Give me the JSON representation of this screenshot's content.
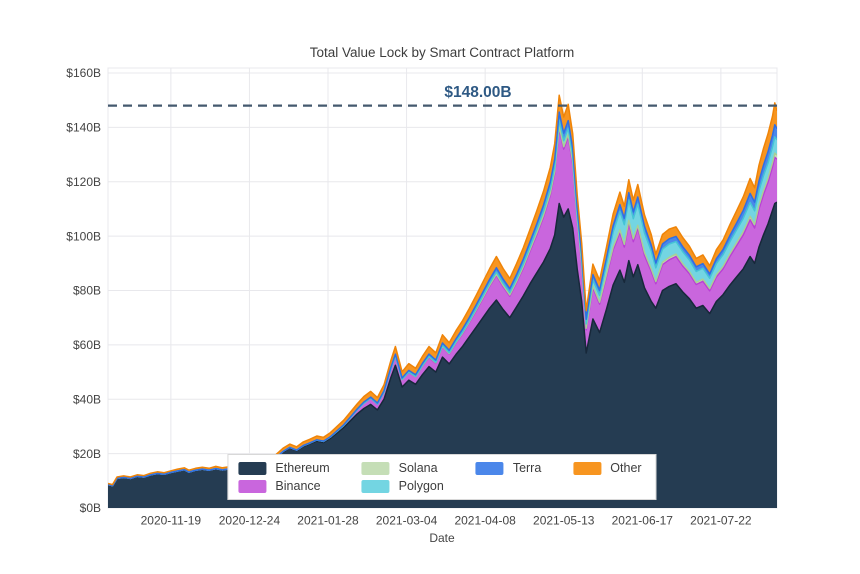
{
  "figure": {
    "title": "Total Value Lock by Smart Contract Platform",
    "x_axis_title": "Date",
    "annotation_label": "$148.00B"
  },
  "chart_data": {
    "type": "area",
    "stacked": true,
    "title": "Total Value Lock by Smart Contract Platform",
    "xlabel": "Date",
    "ylabel": "",
    "grid": true,
    "legend_position": "inside-bottom-center",
    "background": "#ffffff",
    "grid_color": "#e8e8ec",
    "tick_color": "#444444",
    "ylim": [
      0,
      160
    ],
    "y_tick_values": [
      0,
      20,
      40,
      60,
      80,
      100,
      120,
      140,
      160
    ],
    "y_tick_labels": [
      "$0B",
      "$20B",
      "$40B",
      "$60B",
      "$80B",
      "$100B",
      "$120B",
      "$140B",
      "$160B"
    ],
    "x_range": [
      "2020-10-22",
      "2021-08-16"
    ],
    "x_tick_labels": [
      "2020-11-19",
      "2020-12-24",
      "2021-01-28",
      "2021-03-04",
      "2021-04-08",
      "2021-05-13",
      "2021-06-17",
      "2021-07-22"
    ],
    "reference_line": {
      "value": 148,
      "label": "$148.00B",
      "style": "dashed",
      "color": "#44596e"
    },
    "series_meta": [
      {
        "name": "Ethereum",
        "fill": "#253c52",
        "line": "#17283a"
      },
      {
        "name": "Binance",
        "fill": "#c966dd",
        "line": "#b93fd4"
      },
      {
        "name": "Solana",
        "fill": "#c5deb6",
        "line": "#a9cf96"
      },
      {
        "name": "Polygon",
        "fill": "#73d5e2",
        "line": "#45c4d6"
      },
      {
        "name": "Terra",
        "fill": "#4b87ea",
        "line": "#2f6fe3"
      },
      {
        "name": "Other",
        "fill": "#f79520",
        "line": "#ef8408"
      }
    ],
    "points": [
      [
        "2020-10-22",
        8.6,
        0,
        0,
        0,
        0,
        0.4
      ],
      [
        "2020-10-24",
        8.2,
        0,
        0,
        0,
        0,
        0.4
      ],
      [
        "2020-10-26",
        10.9,
        0,
        0,
        0,
        0,
        0.5
      ],
      [
        "2020-10-29",
        11.3,
        0,
        0,
        0,
        0,
        0.5
      ],
      [
        "2020-11-01",
        10.9,
        0,
        0,
        0,
        0,
        0.5
      ],
      [
        "2020-11-04",
        11.7,
        0,
        0,
        0,
        0,
        0.5
      ],
      [
        "2020-11-07",
        11.4,
        0,
        0,
        0,
        0,
        0.5
      ],
      [
        "2020-11-10",
        12.2,
        0,
        0,
        0,
        0,
        0.6
      ],
      [
        "2020-11-13",
        12.7,
        0,
        0,
        0,
        0,
        0.6
      ],
      [
        "2020-11-16",
        12.4,
        0,
        0,
        0,
        0,
        0.6
      ],
      [
        "2020-11-19",
        13.1,
        0,
        0,
        0,
        0,
        0.6
      ],
      [
        "2020-11-22",
        13.6,
        0,
        0,
        0,
        0,
        0.7
      ],
      [
        "2020-11-25",
        14.1,
        0,
        0,
        0,
        0,
        0.7
      ],
      [
        "2020-11-27",
        13.2,
        0,
        0,
        0,
        0,
        0.7
      ],
      [
        "2020-11-30",
        13.9,
        0,
        0,
        0,
        0,
        0.7
      ],
      [
        "2020-12-03",
        14.3,
        0,
        0,
        0,
        0,
        0.7
      ],
      [
        "2020-12-06",
        13.9,
        0,
        0,
        0,
        0,
        0.7
      ],
      [
        "2020-12-09",
        14.5,
        0,
        0,
        0,
        0,
        0.8
      ],
      [
        "2020-12-12",
        14.0,
        0,
        0,
        0,
        0,
        0.8
      ],
      [
        "2020-12-15",
        14.4,
        0,
        0,
        0,
        0,
        0.8
      ],
      [
        "2020-12-18",
        14.9,
        0,
        0,
        0,
        0,
        0.8
      ],
      [
        "2020-12-21",
        14.6,
        0,
        0,
        0,
        0,
        0.8
      ],
      [
        "2020-12-24",
        15.3,
        0,
        0,
        0,
        0,
        0.9
      ],
      [
        "2020-12-27",
        15.9,
        0.1,
        0,
        0,
        0,
        0.9
      ],
      [
        "2020-12-30",
        16.3,
        0.1,
        0,
        0,
        0,
        1.0
      ],
      [
        "2021-01-02",
        17.1,
        0.1,
        0,
        0,
        0,
        1.0
      ],
      [
        "2021-01-05",
        18.6,
        0.1,
        0,
        0,
        0,
        1.1
      ],
      [
        "2021-01-08",
        20.6,
        0.2,
        0,
        0,
        0,
        1.2
      ],
      [
        "2021-01-11",
        22.1,
        0.2,
        0,
        0,
        0,
        1.2
      ],
      [
        "2021-01-14",
        21.1,
        0.2,
        0,
        0,
        0,
        1.2
      ],
      [
        "2021-01-17",
        22.6,
        0.3,
        0,
        0,
        0.1,
        1.3
      ],
      [
        "2021-01-20",
        23.6,
        0.3,
        0,
        0,
        0.1,
        1.3
      ],
      [
        "2021-01-23",
        24.6,
        0.4,
        0,
        0,
        0.1,
        1.4
      ],
      [
        "2021-01-26",
        24.1,
        0.4,
        0,
        0,
        0.1,
        1.4
      ],
      [
        "2021-01-29",
        25.6,
        0.5,
        0,
        0,
        0.1,
        1.5
      ],
      [
        "2021-02-01",
        27.6,
        0.6,
        0,
        0,
        0.2,
        1.6
      ],
      [
        "2021-02-04",
        29.6,
        0.8,
        0,
        0,
        0.2,
        1.7
      ],
      [
        "2021-02-07",
        32.1,
        1.1,
        0,
        0,
        0.3,
        1.8
      ],
      [
        "2021-02-10",
        34.6,
        1.5,
        0,
        0,
        0.3,
        1.9
      ],
      [
        "2021-02-13",
        36.6,
        1.9,
        0.1,
        0,
        0.4,
        2.0
      ],
      [
        "2021-02-16",
        38.1,
        2.2,
        0.1,
        0,
        0.4,
        2.1
      ],
      [
        "2021-02-19",
        36.1,
        2.0,
        0.1,
        0,
        0.4,
        2.0
      ],
      [
        "2021-02-22",
        40.1,
        2.4,
        0.1,
        0.1,
        0.5,
        2.2
      ],
      [
        "2021-02-25",
        48.0,
        2.9,
        0.1,
        0.1,
        0.6,
        2.6
      ],
      [
        "2021-02-27",
        52.5,
        3.2,
        0.2,
        0.1,
        0.6,
        2.8
      ],
      [
        "2021-03-02",
        44.5,
        2.6,
        0.1,
        0.1,
        0.5,
        2.3
      ],
      [
        "2021-03-05",
        47.0,
        2.8,
        0.1,
        0.1,
        0.6,
        2.5
      ],
      [
        "2021-03-08",
        45.5,
        2.7,
        0.1,
        0.1,
        0.6,
        2.4
      ],
      [
        "2021-03-11",
        49.0,
        3.0,
        0.2,
        0.2,
        0.7,
        2.6
      ],
      [
        "2021-03-14",
        52.0,
        3.4,
        0.2,
        0.2,
        0.8,
        2.8
      ],
      [
        "2021-03-17",
        50.0,
        3.2,
        0.2,
        0.2,
        0.8,
        2.7
      ],
      [
        "2021-03-20",
        55.5,
        3.8,
        0.2,
        0.3,
        0.9,
        3.0
      ],
      [
        "2021-03-23",
        53.0,
        3.6,
        0.2,
        0.3,
        0.9,
        2.8
      ],
      [
        "2021-03-26",
        56.5,
        4.1,
        0.3,
        0.3,
        1.0,
        3.0
      ],
      [
        "2021-03-29",
        59.5,
        4.6,
        0.3,
        0.4,
        1.1,
        3.1
      ],
      [
        "2021-04-01",
        63.0,
        5.2,
        0.3,
        0.4,
        1.2,
        3.3
      ],
      [
        "2021-04-04",
        66.5,
        6.0,
        0.4,
        0.5,
        1.3,
        3.5
      ],
      [
        "2021-04-07",
        70.0,
        7.0,
        0.4,
        0.6,
        1.4,
        3.7
      ],
      [
        "2021-04-10",
        73.5,
        8.0,
        0.4,
        0.7,
        1.5,
        3.9
      ],
      [
        "2021-04-13",
        76.5,
        9.0,
        0.5,
        0.8,
        1.6,
        4.1
      ],
      [
        "2021-04-16",
        73.0,
        8.4,
        0.5,
        0.8,
        1.5,
        3.9
      ],
      [
        "2021-04-19",
        70.0,
        7.9,
        0.5,
        0.8,
        1.5,
        3.7
      ],
      [
        "2021-04-22",
        74.0,
        8.9,
        0.5,
        0.9,
        1.6,
        4.0
      ],
      [
        "2021-04-25",
        78.0,
        10.2,
        0.6,
        1.0,
        1.7,
        4.2
      ],
      [
        "2021-04-28",
        82.5,
        12.0,
        0.6,
        1.1,
        1.8,
        4.5
      ],
      [
        "2021-05-01",
        86.5,
        14.0,
        0.7,
        1.3,
        2.0,
        4.8
      ],
      [
        "2021-05-04",
        90.5,
        16.5,
        0.7,
        1.5,
        2.2,
        5.1
      ],
      [
        "2021-05-07",
        95.5,
        19.5,
        0.8,
        1.7,
        2.4,
        5.4
      ],
      [
        "2021-05-09",
        100.5,
        22.5,
        0.8,
        1.9,
        2.6,
        5.7
      ],
      [
        "2021-05-11",
        112.0,
        27.5,
        0.9,
        2.3,
        2.9,
        6.2
      ],
      [
        "2021-05-13",
        107.0,
        25.0,
        0.9,
        2.2,
        2.8,
        5.9
      ],
      [
        "2021-05-15",
        110.0,
        26.5,
        0.9,
        2.3,
        2.8,
        6.0
      ],
      [
        "2021-05-17",
        103.0,
        23.5,
        0.9,
        2.2,
        2.6,
        5.5
      ],
      [
        "2021-05-19",
        88.0,
        17.5,
        0.8,
        2.0,
        2.3,
        4.6
      ],
      [
        "2021-05-21",
        76.0,
        13.0,
        0.7,
        1.8,
        2.0,
        3.9
      ],
      [
        "2021-05-23",
        57.0,
        8.5,
        0.6,
        1.6,
        1.7,
        3.2
      ],
      [
        "2021-05-26",
        69.5,
        11.5,
        0.7,
        2.2,
        2.0,
        3.8
      ],
      [
        "2021-05-29",
        64.5,
        10.5,
        0.7,
        2.5,
        1.9,
        3.6
      ],
      [
        "2021-06-01",
        73.0,
        12.0,
        0.8,
        3.8,
        2.2,
        4.0
      ],
      [
        "2021-06-04",
        82.0,
        13.0,
        0.9,
        5.5,
        2.4,
        4.3
      ],
      [
        "2021-06-07",
        87.5,
        13.8,
        1.0,
        6.8,
        2.5,
        4.6
      ],
      [
        "2021-06-09",
        83.0,
        13.0,
        1.0,
        7.2,
        2.4,
        4.4
      ],
      [
        "2021-06-11",
        91.0,
        13.8,
        1.0,
        7.6,
        2.6,
        4.7
      ],
      [
        "2021-06-13",
        85.0,
        13.0,
        1.0,
        7.4,
        2.5,
        4.4
      ],
      [
        "2021-06-15",
        89.5,
        13.5,
        1.0,
        7.8,
        2.6,
        4.6
      ],
      [
        "2021-06-18",
        81.0,
        12.0,
        1.0,
        7.2,
        2.4,
        4.2
      ],
      [
        "2021-06-21",
        76.0,
        11.0,
        0.9,
        6.5,
        2.2,
        3.9
      ],
      [
        "2021-06-23",
        73.5,
        9.0,
        0.8,
        5.0,
        1.8,
        3.3
      ],
      [
        "2021-06-26",
        80.0,
        9.5,
        0.9,
        4.8,
        1.9,
        3.5
      ],
      [
        "2021-06-29",
        81.5,
        9.8,
        0.9,
        4.9,
        1.9,
        3.6
      ],
      [
        "2021-07-02",
        82.5,
        10.0,
        0.9,
        4.6,
        1.9,
        3.5
      ],
      [
        "2021-07-05",
        79.5,
        9.5,
        0.9,
        4.4,
        1.8,
        3.4
      ],
      [
        "2021-07-08",
        77.0,
        9.2,
        0.8,
        4.2,
        1.8,
        3.3
      ],
      [
        "2021-07-11",
        73.5,
        8.7,
        0.8,
        4.0,
        1.7,
        3.1
      ],
      [
        "2021-07-14",
        74.5,
        8.9,
        0.8,
        4.0,
        1.7,
        3.2
      ],
      [
        "2021-07-17",
        71.5,
        8.4,
        0.8,
        3.8,
        1.6,
        3.0
      ],
      [
        "2021-07-20",
        76.0,
        9.0,
        0.8,
        4.1,
        1.8,
        3.3
      ],
      [
        "2021-07-23",
        78.5,
        9.5,
        0.9,
        4.3,
        1.9,
        3.5
      ],
      [
        "2021-07-26",
        82.0,
        10.5,
        1.0,
        4.5,
        2.2,
        4.0
      ],
      [
        "2021-07-29",
        85.0,
        11.5,
        1.1,
        4.7,
        2.5,
        4.5
      ],
      [
        "2021-08-01",
        88.0,
        12.5,
        1.2,
        4.9,
        2.9,
        5.0
      ],
      [
        "2021-08-04",
        92.5,
        13.5,
        1.3,
        5.1,
        3.3,
        5.5
      ],
      [
        "2021-08-06",
        90.0,
        13.0,
        1.3,
        5.0,
        3.2,
        5.3
      ],
      [
        "2021-08-08",
        96.0,
        14.0,
        1.4,
        5.3,
        3.6,
        5.8
      ],
      [
        "2021-08-10",
        100.5,
        14.8,
        1.4,
        5.5,
        3.9,
        6.2
      ],
      [
        "2021-08-12",
        104.5,
        15.3,
        1.5,
        5.6,
        4.1,
        6.6
      ],
      [
        "2021-08-14",
        109.5,
        16.0,
        1.5,
        5.8,
        4.3,
        7.0
      ],
      [
        "2021-08-15",
        112.0,
        17.0,
        1.5,
        6.0,
        4.5,
        8.0
      ],
      [
        "2021-08-16",
        112.5,
        15.8,
        1.5,
        5.6,
        4.1,
        6.6
      ]
    ]
  }
}
